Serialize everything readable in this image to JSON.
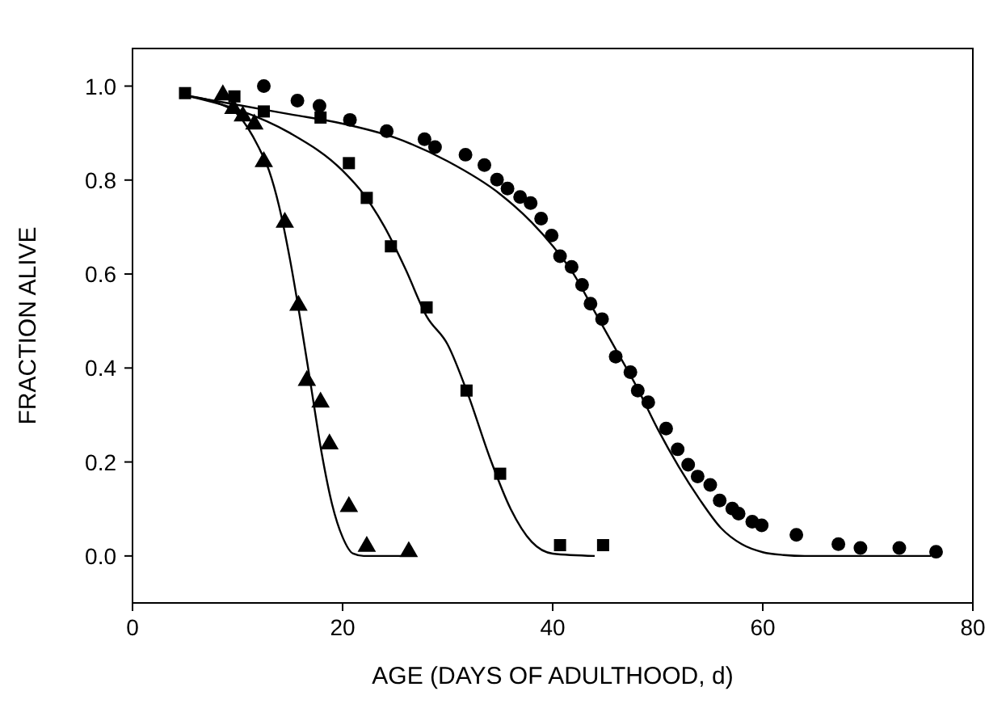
{
  "chart_data": {
    "type": "scatter",
    "xlabel": "AGE (DAYS OF ADULTHOOD, d)",
    "ylabel": "FRACTION ALIVE",
    "xlim": [
      0,
      80
    ],
    "ylim": [
      -0.1,
      1.08
    ],
    "xticks": [
      0,
      20,
      40,
      60,
      80
    ],
    "yticks": [
      {
        "value": 0,
        "label": "0.0"
      },
      {
        "value": 0.2,
        "label": "0.2"
      },
      {
        "value": 0.4,
        "label": "0.4"
      },
      {
        "value": 0.6,
        "label": "0.6"
      },
      {
        "value": 0.8,
        "label": "0.8"
      },
      {
        "value": 1,
        "label": "1.0"
      }
    ],
    "grid": false,
    "series": [
      {
        "marker": "triangle",
        "color": "#000000",
        "x": [
          8.6,
          9.6,
          10.5,
          11.6,
          12.5,
          14.5,
          15.8,
          16.6,
          17.9,
          18.75,
          20.6,
          22.3,
          26.3
        ],
        "values": [
          0.981,
          0.952,
          0.936,
          0.919,
          0.839,
          0.71,
          0.533,
          0.373,
          0.327,
          0.238,
          0.105,
          0.02,
          0.009
        ]
      },
      {
        "marker": "square",
        "color": "#000000",
        "x": [
          5.0,
          9.7,
          12.5,
          17.9,
          20.6,
          22.3,
          24.6,
          28.0,
          31.8,
          35.0,
          40.7,
          44.8
        ],
        "values": [
          0.985,
          0.978,
          0.946,
          0.933,
          0.836,
          0.762,
          0.659,
          0.529,
          0.352,
          0.175,
          0.023,
          0.023
        ]
      },
      {
        "marker": "circle",
        "color": "#000000",
        "x": [
          12.5,
          15.7,
          17.8,
          20.7,
          24.2,
          27.8,
          28.8,
          31.7,
          33.5,
          34.7,
          35.7,
          36.9,
          37.9,
          38.9,
          39.9,
          40.7,
          41.8,
          42.8,
          43.6,
          44.7,
          46.0,
          47.4,
          48.1,
          49.1,
          50.8,
          51.9,
          52.9,
          53.8,
          55.0,
          55.9,
          57.1,
          57.7,
          59.0,
          59.9,
          63.2,
          67.2,
          69.3,
          73.0,
          76.5
        ],
        "values": [
          1.0,
          0.969,
          0.958,
          0.928,
          0.904,
          0.887,
          0.87,
          0.854,
          0.832,
          0.801,
          0.782,
          0.764,
          0.751,
          0.718,
          0.682,
          0.638,
          0.615,
          0.577,
          0.537,
          0.504,
          0.424,
          0.391,
          0.352,
          0.327,
          0.271,
          0.227,
          0.194,
          0.169,
          0.151,
          0.118,
          0.101,
          0.09,
          0.073,
          0.065,
          0.045,
          0.025,
          0.017,
          0.017,
          0.009
        ]
      },
      {
        "type": "line",
        "marker": "none",
        "color": "#000000",
        "x": [
          5,
          8,
          10,
          12,
          13,
          14,
          15,
          16,
          17,
          18,
          19,
          20,
          21,
          22,
          26
        ],
        "values": [
          0.98,
          0.965,
          0.94,
          0.87,
          0.82,
          0.74,
          0.63,
          0.5,
          0.36,
          0.22,
          0.11,
          0.04,
          0.005,
          0,
          0
        ]
      },
      {
        "type": "line",
        "marker": "none",
        "color": "#000000",
        "x": [
          5,
          10,
          15,
          20,
          22,
          24,
          26,
          28,
          30,
          32,
          34,
          36,
          38,
          40,
          44
        ],
        "values": [
          0.98,
          0.95,
          0.9,
          0.82,
          0.77,
          0.7,
          0.61,
          0.51,
          0.45,
          0.34,
          0.21,
          0.1,
          0.03,
          0.005,
          0
        ]
      },
      {
        "type": "line",
        "marker": "none",
        "color": "#000000",
        "x": [
          5,
          10,
          15,
          20,
          25,
          30,
          35,
          38,
          40,
          42,
          44,
          46,
          48,
          50,
          52,
          54,
          56,
          58,
          60,
          62,
          64,
          76
        ],
        "values": [
          0.98,
          0.96,
          0.94,
          0.92,
          0.89,
          0.84,
          0.77,
          0.71,
          0.66,
          0.6,
          0.52,
          0.44,
          0.36,
          0.27,
          0.19,
          0.12,
          0.06,
          0.025,
          0.008,
          0.002,
          0,
          0
        ]
      }
    ]
  }
}
